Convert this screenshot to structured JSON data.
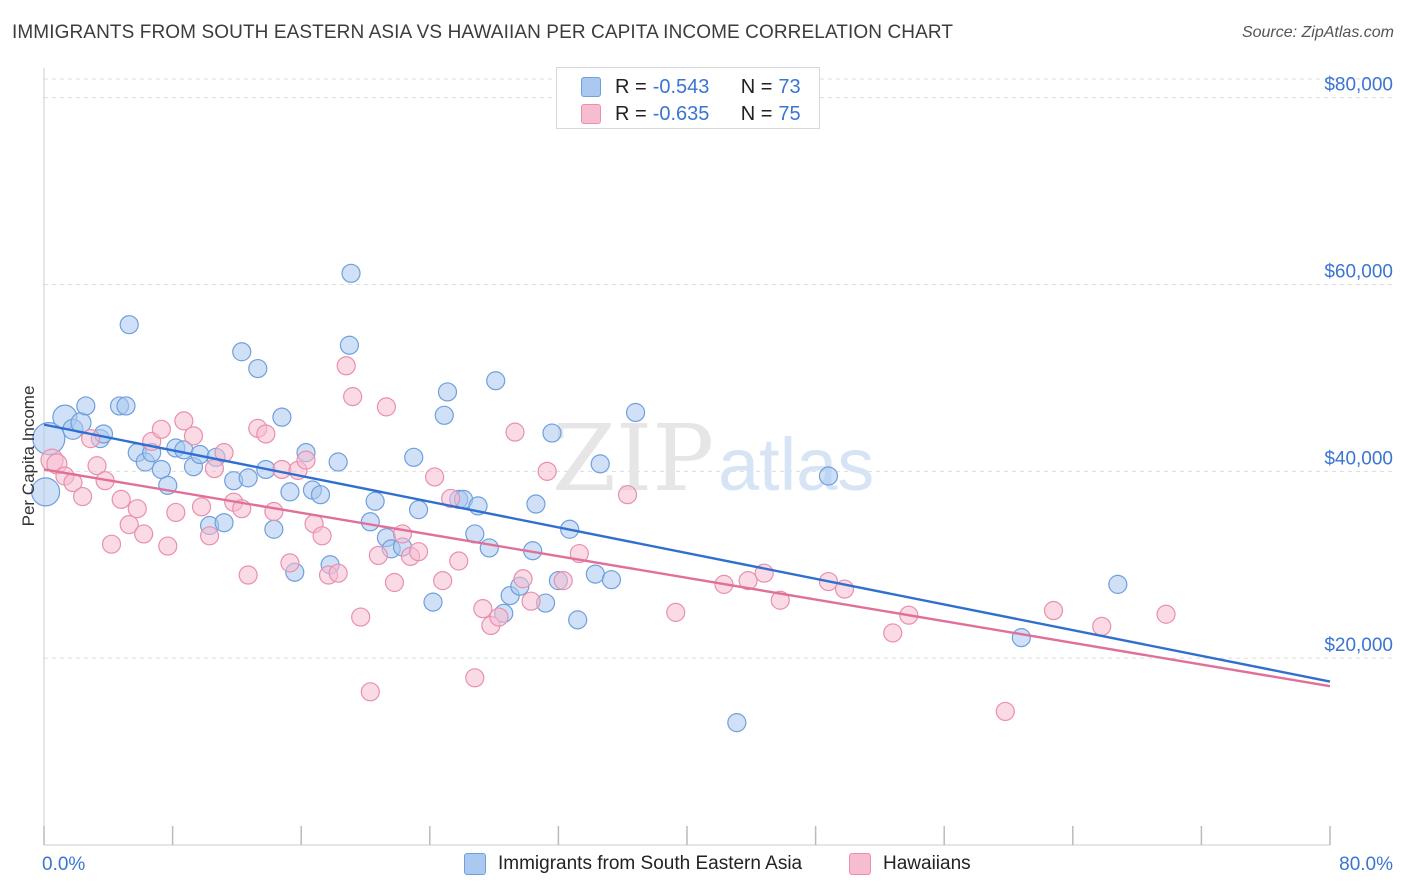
{
  "title": "IMMIGRANTS FROM SOUTH EASTERN ASIA VS HAWAIIAN PER CAPITA INCOME CORRELATION CHART",
  "source": "Source: ZipAtlas.com",
  "watermark": {
    "zip": "ZIP",
    "atlas": "atlas"
  },
  "colors": {
    "blue_fill": "#aac8f0",
    "blue_stroke": "#6f9fdc",
    "blue_line": "#2f6fcf",
    "pink_fill": "#f6bcd0",
    "pink_stroke": "#e890ae",
    "pink_line": "#e0709a",
    "axis_label": "#3a75d1",
    "grid": "#dddddd"
  },
  "legend": {
    "series1": {
      "r_label": "R =",
      "r_value": "-0.543",
      "n_label": "N =",
      "n_value": "73"
    },
    "series2": {
      "r_label": "R =",
      "r_value": "-0.635",
      "n_label": "N =",
      "n_value": "75"
    }
  },
  "chart_data": {
    "type": "scatter",
    "title": "IMMIGRANTS FROM SOUTH EASTERN ASIA VS HAWAIIAN PER CAPITA INCOME CORRELATION CHART",
    "xlabel": "",
    "ylabel": "Per Capita Income",
    "xlim": [
      0,
      80
    ],
    "ylim": [
      0,
      82000
    ],
    "x_tick_labels": [
      "0.0%",
      "80.0%"
    ],
    "y_ticks": [
      20000,
      40000,
      60000,
      80000
    ],
    "y_tick_labels": [
      "$20,000",
      "$40,000",
      "$60,000",
      "$80,000"
    ],
    "grid": true,
    "legend_position": "top-center and bottom",
    "series": [
      {
        "name": "Immigrants from South Eastern Asia",
        "color": "#aac8f0",
        "trend": {
          "x": [
            0,
            80
          ],
          "y": [
            45000,
            17500
          ]
        },
        "points": [
          [
            0.1,
            37800,
            14
          ],
          [
            0.3,
            43500,
            16
          ],
          [
            1.3,
            45800,
            12
          ],
          [
            1.8,
            44500,
            10
          ],
          [
            2.3,
            45200,
            10
          ],
          [
            2.6,
            47000,
            9
          ],
          [
            3.5,
            43500,
            9
          ],
          [
            3.7,
            44000,
            9
          ],
          [
            4.7,
            47000,
            9
          ],
          [
            5.1,
            47000,
            9
          ],
          [
            5.3,
            55700,
            9
          ],
          [
            5.8,
            42000,
            9
          ],
          [
            6.3,
            41000,
            9
          ],
          [
            6.7,
            42000,
            9
          ],
          [
            7.3,
            40200,
            9
          ],
          [
            7.7,
            38500,
            9
          ],
          [
            8.2,
            42500,
            9
          ],
          [
            8.7,
            42300,
            9
          ],
          [
            9.3,
            40500,
            9
          ],
          [
            9.7,
            41800,
            9
          ],
          [
            10.3,
            34200,
            9
          ],
          [
            10.7,
            41500,
            9
          ],
          [
            11.2,
            34500,
            9
          ],
          [
            11.8,
            39000,
            9
          ],
          [
            12.3,
            52800,
            9
          ],
          [
            12.7,
            39300,
            9
          ],
          [
            13.3,
            51000,
            9
          ],
          [
            13.8,
            40200,
            9
          ],
          [
            14.3,
            33800,
            9
          ],
          [
            14.8,
            45800,
            9
          ],
          [
            15.3,
            37800,
            9
          ],
          [
            15.6,
            29200,
            9
          ],
          [
            16.3,
            42000,
            9
          ],
          [
            16.7,
            38000,
            9
          ],
          [
            17.2,
            37500,
            9
          ],
          [
            17.8,
            30000,
            9
          ],
          [
            18.3,
            41000,
            9
          ],
          [
            19.0,
            53500,
            9
          ],
          [
            19.1,
            61200,
            9
          ],
          [
            20.3,
            34600,
            9
          ],
          [
            20.6,
            36800,
            9
          ],
          [
            21.3,
            32900,
            9
          ],
          [
            21.6,
            31700,
            9
          ],
          [
            22.3,
            31900,
            9
          ],
          [
            23.0,
            41500,
            9
          ],
          [
            23.3,
            35900,
            9
          ],
          [
            24.2,
            26000,
            9
          ],
          [
            24.9,
            46000,
            9
          ],
          [
            25.1,
            48500,
            9
          ],
          [
            25.8,
            37000,
            9
          ],
          [
            26.1,
            37000,
            9
          ],
          [
            26.8,
            33300,
            9
          ],
          [
            27.0,
            36300,
            9
          ],
          [
            27.7,
            31800,
            9
          ],
          [
            28.1,
            49700,
            9
          ],
          [
            28.6,
            24800,
            9
          ],
          [
            29.0,
            26700,
            9
          ],
          [
            29.6,
            27700,
            9
          ],
          [
            30.4,
            31500,
            9
          ],
          [
            30.6,
            36500,
            9
          ],
          [
            31.2,
            25900,
            9
          ],
          [
            31.6,
            44100,
            9
          ],
          [
            32.0,
            28300,
            9
          ],
          [
            32.7,
            33800,
            9
          ],
          [
            33.2,
            24100,
            9
          ],
          [
            34.3,
            29000,
            9
          ],
          [
            34.6,
            40800,
            9
          ],
          [
            35.3,
            28400,
            9
          ],
          [
            36.8,
            46300,
            9
          ],
          [
            43.1,
            13100,
            9
          ],
          [
            48.8,
            39500,
            9
          ],
          [
            60.8,
            22200,
            9
          ],
          [
            66.8,
            27900,
            9
          ]
        ]
      },
      {
        "name": "Hawaiians",
        "color": "#f6bcd0",
        "trend": {
          "x": [
            0,
            80
          ],
          "y": [
            40200,
            17000
          ]
        },
        "points": [
          [
            0.5,
            41200,
            11
          ],
          [
            0.8,
            40800,
            10
          ],
          [
            1.3,
            39500,
            9
          ],
          [
            1.8,
            38800,
            9
          ],
          [
            2.4,
            37300,
            9
          ],
          [
            2.9,
            43500,
            9
          ],
          [
            3.3,
            40600,
            9
          ],
          [
            3.8,
            39000,
            9
          ],
          [
            4.2,
            32200,
            9
          ],
          [
            4.8,
            37000,
            9
          ],
          [
            5.3,
            34300,
            9
          ],
          [
            5.8,
            36000,
            9
          ],
          [
            6.2,
            33300,
            9
          ],
          [
            6.7,
            43200,
            9
          ],
          [
            7.3,
            44500,
            9
          ],
          [
            7.7,
            32000,
            9
          ],
          [
            8.2,
            35600,
            9
          ],
          [
            8.7,
            45400,
            9
          ],
          [
            9.3,
            43800,
            9
          ],
          [
            9.8,
            36200,
            9
          ],
          [
            10.3,
            33100,
            9
          ],
          [
            10.6,
            40300,
            9
          ],
          [
            11.2,
            42000,
            9
          ],
          [
            11.8,
            36700,
            9
          ],
          [
            12.3,
            36000,
            9
          ],
          [
            12.7,
            28900,
            9
          ],
          [
            13.3,
            44600,
            9
          ],
          [
            13.8,
            44000,
            9
          ],
          [
            14.3,
            35700,
            9
          ],
          [
            14.8,
            40200,
            9
          ],
          [
            15.3,
            30200,
            9
          ],
          [
            15.8,
            40100,
            9
          ],
          [
            16.3,
            41200,
            9
          ],
          [
            16.8,
            34400,
            9
          ],
          [
            17.3,
            33100,
            9
          ],
          [
            17.7,
            28900,
            9
          ],
          [
            18.3,
            29100,
            9
          ],
          [
            18.8,
            51300,
            9
          ],
          [
            19.2,
            48000,
            9
          ],
          [
            19.7,
            24400,
            9
          ],
          [
            20.3,
            16400,
            9
          ],
          [
            20.8,
            31000,
            9
          ],
          [
            21.3,
            46900,
            9
          ],
          [
            21.8,
            28100,
            9
          ],
          [
            22.3,
            33300,
            9
          ],
          [
            22.8,
            30900,
            9
          ],
          [
            23.3,
            31400,
            9
          ],
          [
            24.3,
            39400,
            9
          ],
          [
            24.8,
            28300,
            9
          ],
          [
            25.3,
            37100,
            9
          ],
          [
            25.8,
            30400,
            9
          ],
          [
            26.8,
            17900,
            9
          ],
          [
            27.3,
            25300,
            9
          ],
          [
            27.8,
            23500,
            9
          ],
          [
            28.3,
            24400,
            9
          ],
          [
            29.3,
            44200,
            9
          ],
          [
            29.8,
            28500,
            9
          ],
          [
            30.3,
            26100,
            9
          ],
          [
            31.3,
            40000,
            9
          ],
          [
            32.3,
            28300,
            9
          ],
          [
            33.3,
            31200,
            9
          ],
          [
            36.3,
            37500,
            9
          ],
          [
            39.3,
            24900,
            9
          ],
          [
            42.3,
            27900,
            9
          ],
          [
            43.8,
            28300,
            9
          ],
          [
            44.8,
            29100,
            9
          ],
          [
            45.8,
            26200,
            9
          ],
          [
            48.8,
            28200,
            9
          ],
          [
            49.8,
            27400,
            9
          ],
          [
            52.8,
            22700,
            9
          ],
          [
            53.8,
            24600,
            9
          ],
          [
            59.8,
            14300,
            9
          ],
          [
            62.8,
            25100,
            9
          ],
          [
            65.8,
            23400,
            9
          ],
          [
            69.8,
            24700,
            9
          ]
        ]
      }
    ]
  }
}
